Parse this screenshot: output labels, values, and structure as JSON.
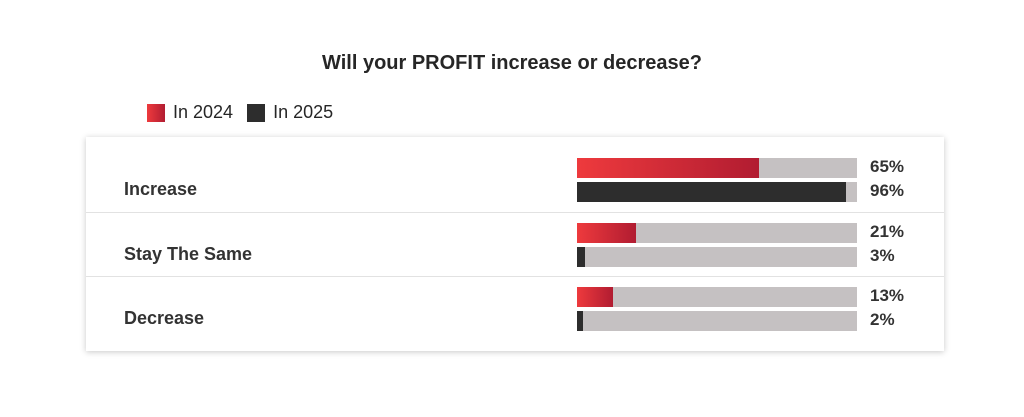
{
  "title_prefix": "Will your ",
  "title_emphasis": "PROFIT",
  "title_suffix": " increase or decrease?",
  "legend": [
    {
      "label": "In 2024",
      "color": "#e8323b"
    },
    {
      "label": "In 2025",
      "color": "#2d2d2d"
    }
  ],
  "chart_data": {
    "type": "bar",
    "orientation": "horizontal",
    "title": "Will your PROFIT increase or decrease?",
    "categories": [
      "Increase",
      "Stay The Same",
      "Decrease"
    ],
    "series": [
      {
        "name": "In 2024",
        "values": [
          65,
          21,
          13
        ],
        "labels": [
          "65%",
          "21%",
          "13%"
        ],
        "color": "#e8323b"
      },
      {
        "name": "In 2025",
        "values": [
          96,
          3,
          2
        ],
        "labels": [
          "96%",
          "3%",
          "2%"
        ],
        "color": "#2d2d2d"
      }
    ],
    "xlim": [
      0,
      100
    ],
    "unit": "%",
    "legend_position": "top-left",
    "grid": false
  }
}
